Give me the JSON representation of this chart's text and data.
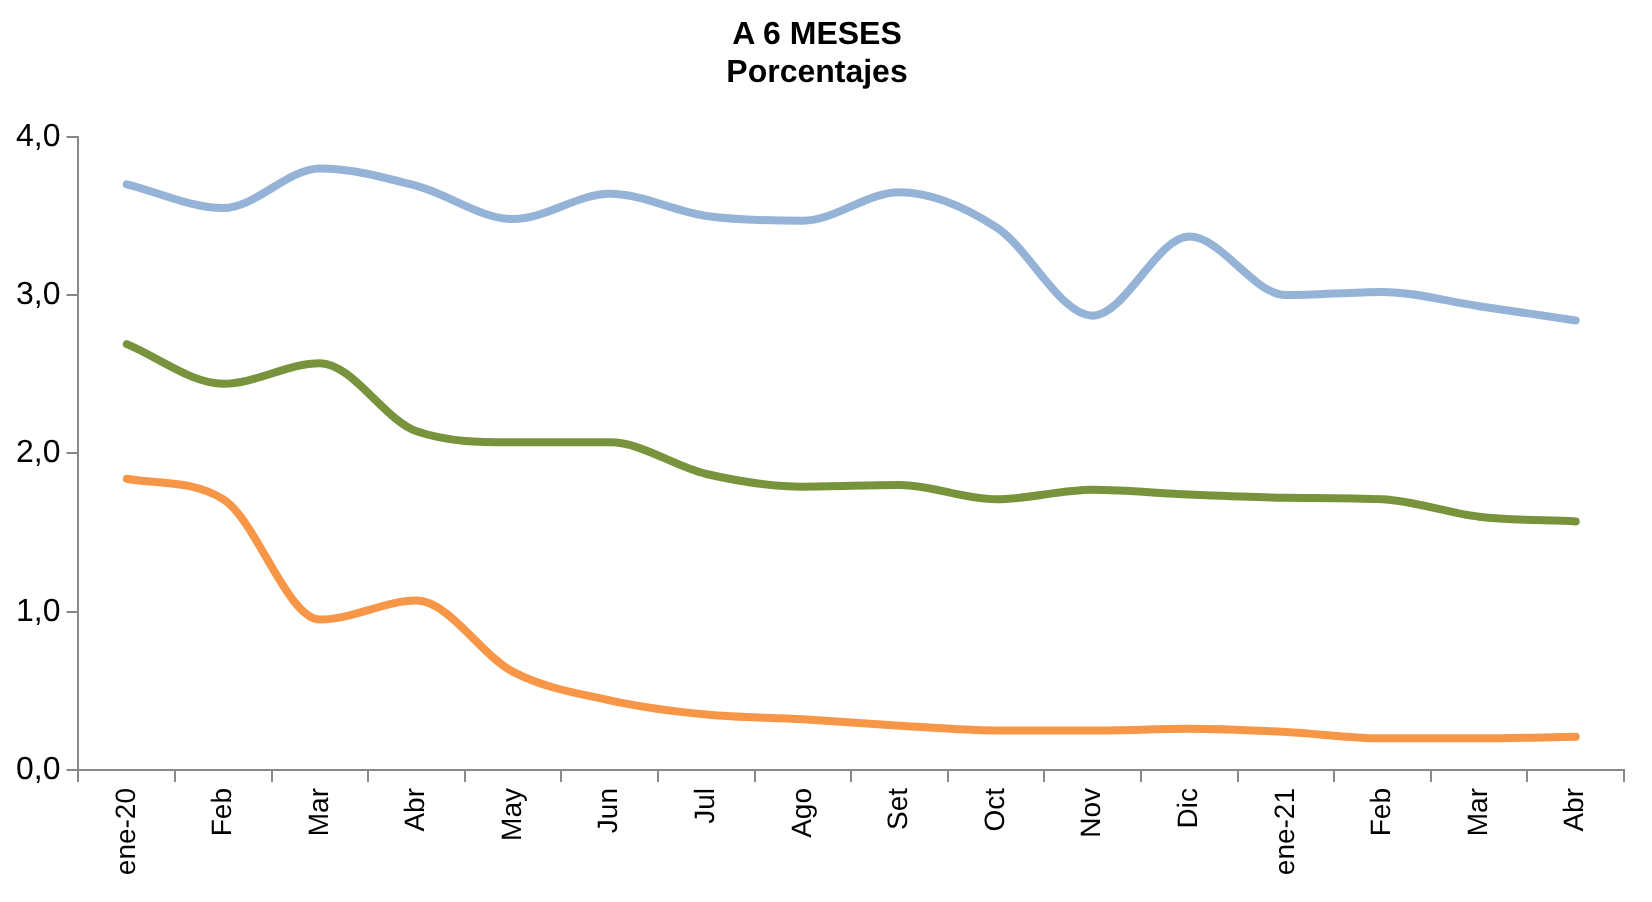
{
  "chart_data": {
    "type": "line",
    "title": "A 6 MESES",
    "subtitle": "Porcentajes",
    "categories": [
      "ene-20",
      "Feb",
      "Mar",
      "Abr",
      "May",
      "Jun",
      "Jul",
      "Ago",
      "Set",
      "Oct",
      "Nov",
      "Dic",
      "ene-21",
      "Feb",
      "Mar",
      "Abr"
    ],
    "series": [
      {
        "color": "#95b3d7",
        "values": [
          3.7,
          3.55,
          3.8,
          3.69,
          3.48,
          3.64,
          3.5,
          3.47,
          3.65,
          3.43,
          2.87,
          3.37,
          3.0,
          3.02,
          2.93,
          2.84
        ]
      },
      {
        "color": "#77933c",
        "values": [
          2.69,
          2.44,
          2.57,
          2.14,
          2.07,
          2.07,
          1.87,
          1.79,
          1.8,
          1.71,
          1.77,
          1.74,
          1.72,
          1.71,
          1.6,
          1.57
        ]
      },
      {
        "color": "#f79646",
        "values": [
          1.84,
          1.71,
          0.95,
          1.07,
          0.62,
          0.44,
          0.35,
          0.32,
          0.28,
          0.25,
          0.25,
          0.26,
          0.24,
          0.2,
          0.2,
          0.21
        ]
      }
    ],
    "ylim": [
      0,
      4
    ],
    "yticks": [
      {
        "value": 0,
        "label": "0,0"
      },
      {
        "value": 1,
        "label": "1,0"
      },
      {
        "value": 2,
        "label": "2,0"
      },
      {
        "value": 3,
        "label": "3,0"
      },
      {
        "value": 4,
        "label": "4,0"
      }
    ],
    "grid": false,
    "legend": false,
    "marker": "none",
    "line_style": "solid"
  }
}
